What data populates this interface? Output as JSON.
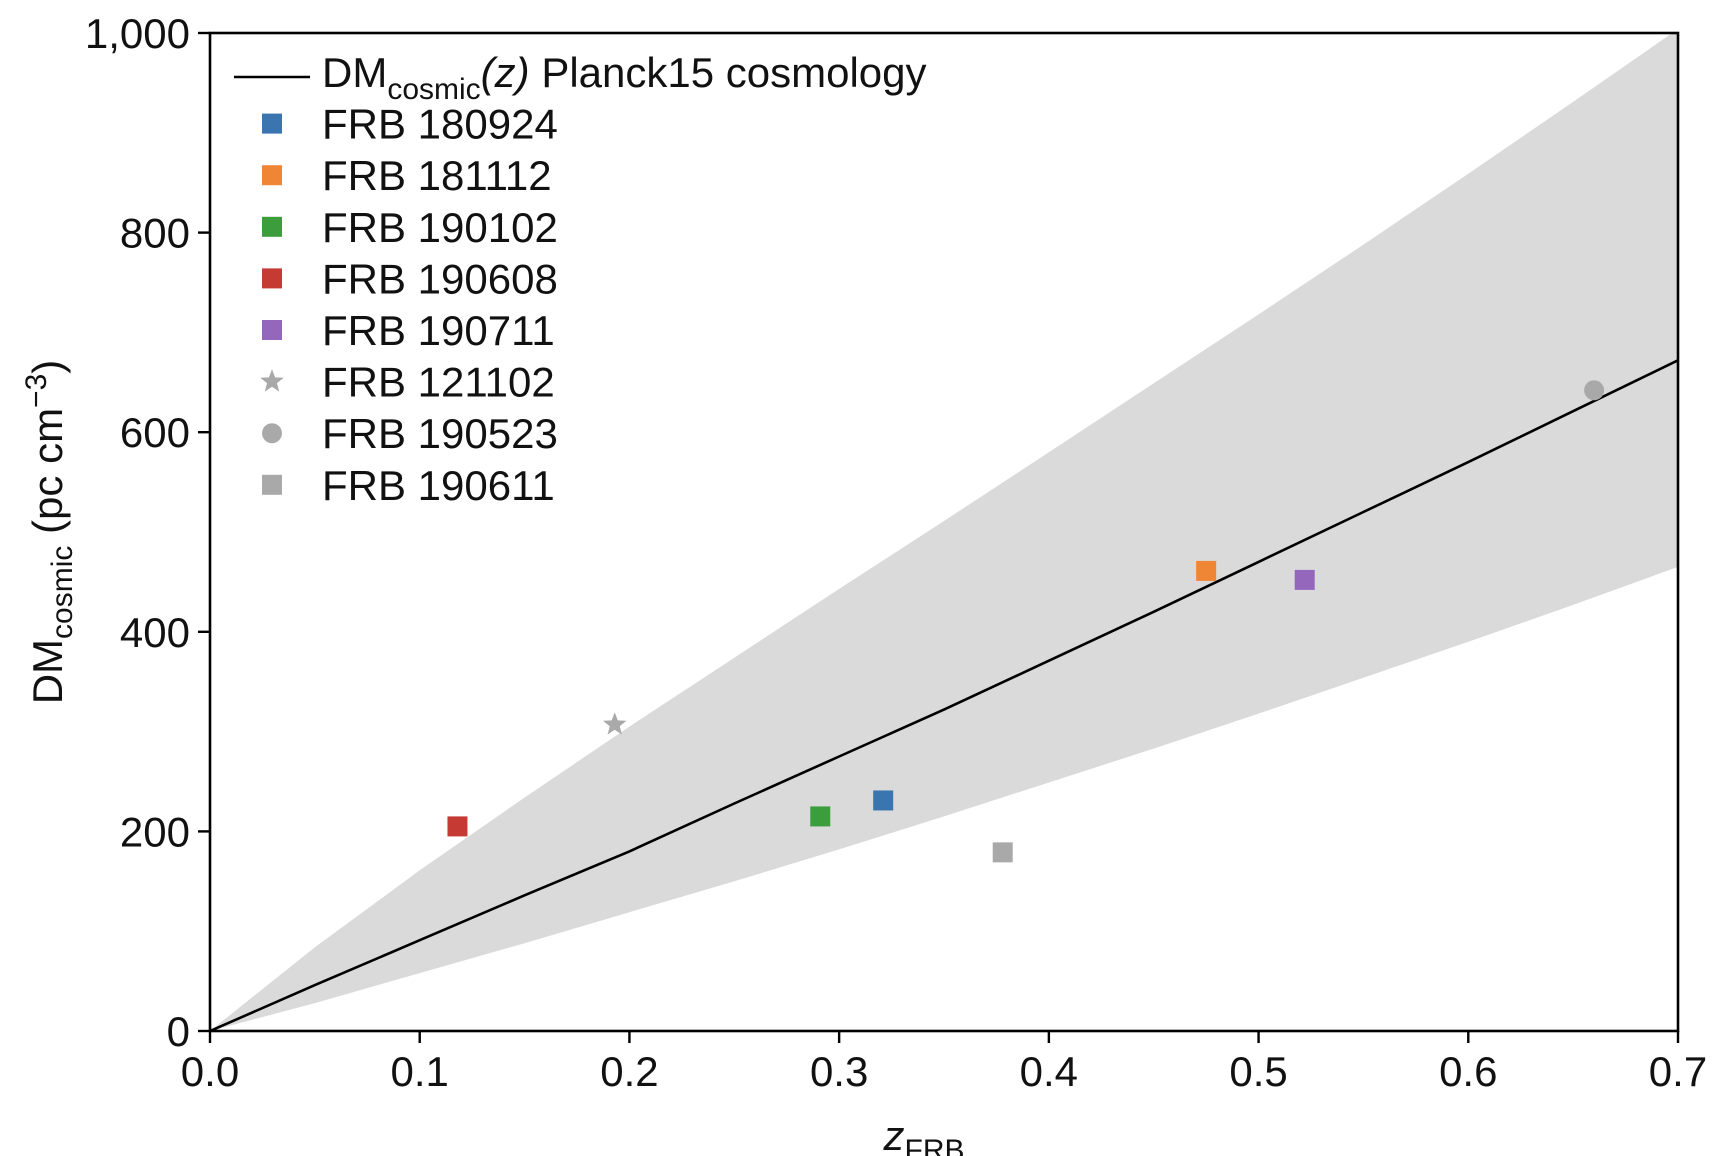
{
  "chart_data": {
    "type": "scatter",
    "title": "",
    "xlabel": {
      "main": "z",
      "sub": "FRB"
    },
    "ylabel": {
      "main": "DM",
      "sub": "cosmic",
      "units": "(pc cm",
      "exp": "−3",
      "close": ")"
    },
    "xlim": [
      0.0,
      0.7
    ],
    "ylim": [
      0,
      1000
    ],
    "xticks": [
      0.0,
      0.1,
      0.2,
      0.3,
      0.4,
      0.5,
      0.6,
      0.7
    ],
    "xtick_labels": [
      "0.0",
      "0.1",
      "0.2",
      "0.3",
      "0.4",
      "0.5",
      "0.6",
      "0.7"
    ],
    "yticks": [
      0,
      200,
      400,
      600,
      800,
      1000
    ],
    "ytick_labels": [
      "0",
      "200",
      "400",
      "600",
      "800",
      "1,000"
    ],
    "grid": false,
    "legend_position": "top-left",
    "model_line": {
      "label_main": "DM",
      "label_sub": "cosmic",
      "label_arg": "(z)",
      "label_rest": " Planck15 cosmology",
      "color": "#000000",
      "x": [
        0.0,
        0.05,
        0.1,
        0.15,
        0.2,
        0.25,
        0.3,
        0.35,
        0.4,
        0.45,
        0.5,
        0.55,
        0.6,
        0.65,
        0.7
      ],
      "y": [
        0,
        46,
        91,
        136,
        180,
        228,
        275,
        322,
        371,
        420,
        470,
        520,
        570,
        621,
        672
      ]
    },
    "band": {
      "color": "#dadada",
      "x": [
        0.0,
        0.05,
        0.1,
        0.15,
        0.2,
        0.25,
        0.3,
        0.35,
        0.4,
        0.45,
        0.5,
        0.55,
        0.6,
        0.65,
        0.7
      ],
      "lower": [
        0,
        28,
        58,
        88,
        119,
        150,
        182,
        215,
        249,
        283,
        318,
        354,
        390,
        427,
        465
      ],
      "upper": [
        0,
        84,
        161,
        234,
        305,
        374,
        443,
        511,
        580,
        649,
        718,
        788,
        859,
        931,
        1004
      ]
    },
    "series": [
      {
        "name": "FRB 180924",
        "marker": "square",
        "color": "#3a75b0",
        "x": 0.321,
        "y": 231
      },
      {
        "name": "FRB 181112",
        "marker": "square",
        "color": "#ef8636",
        "x": 0.475,
        "y": 461
      },
      {
        "name": "FRB 190102",
        "marker": "square",
        "color": "#3c9d3c",
        "x": 0.291,
        "y": 215
      },
      {
        "name": "FRB 190608",
        "marker": "square",
        "color": "#c53a32",
        "x": 0.118,
        "y": 205
      },
      {
        "name": "FRB 190711",
        "marker": "square",
        "color": "#9467bd",
        "x": 0.522,
        "y": 452
      },
      {
        "name": "FRB 121102",
        "marker": "star",
        "color": "#a9a9a9",
        "x": 0.193,
        "y": 307
      },
      {
        "name": "FRB 190523",
        "marker": "circle",
        "color": "#a9a9a9",
        "x": 0.66,
        "y": 642
      },
      {
        "name": "FRB 190611",
        "marker": "square",
        "color": "#a9a9a9",
        "x": 0.378,
        "y": 179
      }
    ]
  }
}
